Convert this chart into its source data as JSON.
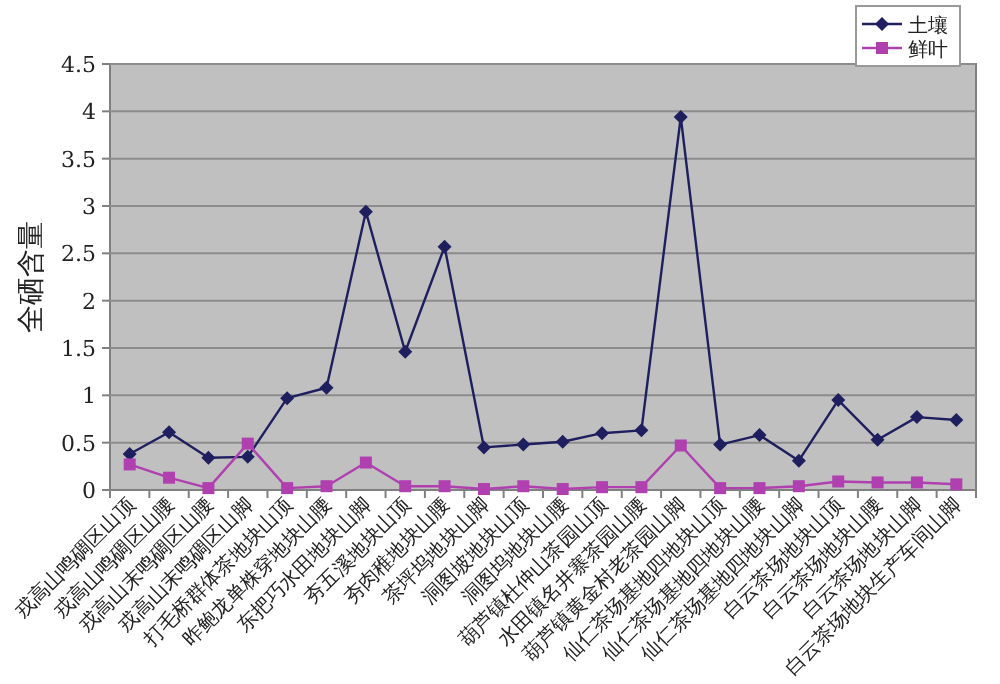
{
  "chart_data": {
    "type": "line",
    "ylabel": "全硒含量",
    "categories": [
      "戎高山鸣碉区山顶",
      "戎高山鸣碉区山腰",
      "戎高山末鸣碉区山腰",
      "戎高山末鸣碉区山脚",
      "打毛桥群体茶地块山顶",
      "昨鲍龙单株穿地块山腰",
      "东把巧水田地块山脚",
      "夯五溪地块山顶",
      "夯肉稚地块山腰",
      "茶坪坞地块山脚",
      "洞图坡地块山顶",
      "洞图坞地块山腰",
      "葫芦镇杜仲山茶园山顶",
      "水田镇名井寨茶园山腰",
      "葫芦镇黄金村老茶园山脚",
      "仙仁茶场基地四地块山顶",
      "仙仁茶场基地四地块山腰",
      "仙仁茶场基地四地块山脚",
      "白云茶场地块山顶",
      "白云茶场地块山腰",
      "白云茶场地块山脚",
      "白云茶场地块生产车间山脚"
    ],
    "series": [
      {
        "name": "土壤",
        "color": "#1f1f5f",
        "marker": "diamond",
        "values": [
          0.38,
          0.61,
          0.34,
          0.35,
          0.97,
          1.08,
          2.94,
          1.46,
          2.57,
          0.45,
          0.48,
          0.51,
          0.6,
          0.63,
          3.94,
          0.48,
          0.58,
          0.31,
          0.95,
          0.53,
          0.77,
          0.74
        ]
      },
      {
        "name": "鲜叶",
        "color": "#b040b0",
        "marker": "square",
        "values": [
          0.27,
          0.13,
          0.02,
          0.49,
          0.02,
          0.04,
          0.29,
          0.04,
          0.04,
          0.01,
          0.04,
          0.01,
          0.03,
          0.03,
          0.47,
          0.02,
          0.02,
          0.04,
          0.09,
          0.08,
          0.08,
          0.06
        ]
      }
    ],
    "ylim": [
      0,
      4.5
    ],
    "yticks": [
      0,
      0.5,
      1,
      1.5,
      2,
      2.5,
      3,
      3.5,
      4,
      4.5
    ],
    "grid": "y",
    "legend": "top right"
  }
}
